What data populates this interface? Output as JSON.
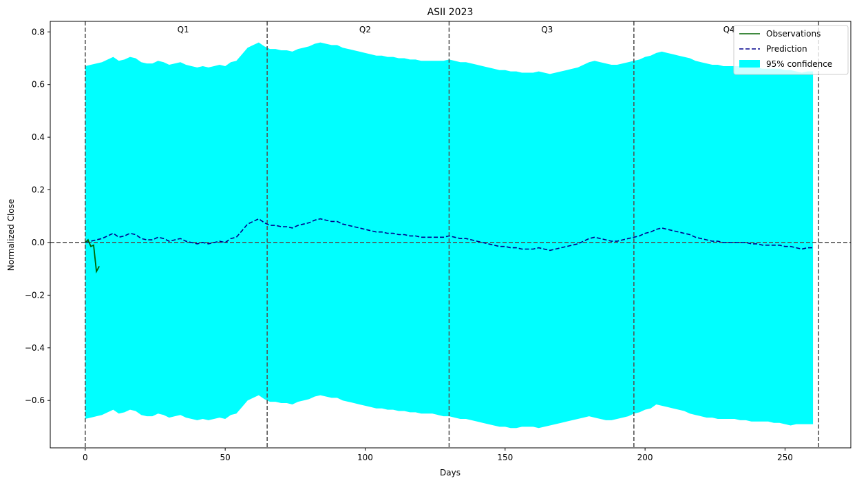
{
  "chart_data": {
    "type": "line",
    "title": "ASII 2023",
    "xlabel": "Days",
    "ylabel": "Normalized Close",
    "xlim": [
      -12.5,
      273.5
    ],
    "ylim": [
      -0.78,
      0.84
    ],
    "xticks": [
      0,
      50,
      100,
      150,
      200,
      250
    ],
    "yticks": [
      -0.6,
      -0.4,
      -0.2,
      0.0,
      0.2,
      0.4,
      0.6,
      0.8
    ],
    "grid": false,
    "legend_position": "top-right",
    "legend": {
      "observations": "Observations",
      "prediction": "Prediction",
      "confidence": "95% confidence"
    },
    "colors": {
      "observations": "#006400",
      "prediction": "#00008b",
      "confidence": "#00ffff",
      "reference_lines": "#555555"
    },
    "quarter_lines": [
      0,
      65,
      130,
      196,
      262
    ],
    "horizontal_line": 0.0,
    "quarter_labels": [
      {
        "label": "Q1",
        "x": 35
      },
      {
        "label": "Q2",
        "x": 100
      },
      {
        "label": "Q3",
        "x": 165
      },
      {
        "label": "Q4",
        "x": 230
      }
    ],
    "observations": {
      "x": [
        0,
        1,
        2,
        3,
        4,
        5
      ],
      "y": [
        0.0,
        0.01,
        -0.015,
        -0.01,
        -0.11,
        -0.09
      ]
    },
    "prediction": {
      "x": [
        0,
        2,
        4,
        6,
        8,
        10,
        12,
        14,
        16,
        18,
        20,
        22,
        24,
        26,
        28,
        30,
        32,
        34,
        36,
        38,
        40,
        42,
        44,
        46,
        48,
        50,
        52,
        54,
        56,
        58,
        60,
        62,
        64,
        66,
        68,
        70,
        72,
        74,
        76,
        78,
        80,
        82,
        84,
        86,
        88,
        90,
        92,
        94,
        96,
        98,
        100,
        102,
        104,
        106,
        108,
        110,
        112,
        114,
        116,
        118,
        120,
        122,
        124,
        126,
        128,
        130,
        132,
        134,
        136,
        138,
        140,
        142,
        144,
        146,
        148,
        150,
        152,
        154,
        156,
        158,
        160,
        162,
        164,
        166,
        168,
        170,
        172,
        174,
        176,
        178,
        180,
        182,
        184,
        186,
        188,
        190,
        192,
        194,
        196,
        198,
        200,
        202,
        204,
        206,
        208,
        210,
        212,
        214,
        216,
        218,
        220,
        222,
        224,
        226,
        228,
        230,
        232,
        234,
        236,
        238,
        240,
        242,
        244,
        246,
        248,
        250,
        252,
        254,
        256,
        258,
        260
      ],
      "y": [
        0.0,
        0.005,
        0.01,
        0.015,
        0.025,
        0.035,
        0.02,
        0.025,
        0.035,
        0.03,
        0.015,
        0.01,
        0.01,
        0.02,
        0.015,
        0.005,
        0.01,
        0.015,
        0.005,
        0.0,
        -0.005,
        0.0,
        -0.005,
        0.0,
        0.005,
        0.0,
        0.015,
        0.02,
        0.045,
        0.07,
        0.08,
        0.09,
        0.075,
        0.065,
        0.065,
        0.06,
        0.06,
        0.055,
        0.065,
        0.07,
        0.075,
        0.085,
        0.09,
        0.085,
        0.08,
        0.08,
        0.07,
        0.065,
        0.06,
        0.055,
        0.05,
        0.045,
        0.04,
        0.04,
        0.035,
        0.035,
        0.03,
        0.03,
        0.025,
        0.025,
        0.02,
        0.02,
        0.02,
        0.02,
        0.02,
        0.025,
        0.02,
        0.015,
        0.015,
        0.01,
        0.005,
        0.0,
        -0.005,
        -0.01,
        -0.015,
        -0.015,
        -0.02,
        -0.02,
        -0.025,
        -0.025,
        -0.025,
        -0.02,
        -0.025,
        -0.03,
        -0.025,
        -0.02,
        -0.015,
        -0.01,
        -0.005,
        0.005,
        0.015,
        0.02,
        0.015,
        0.01,
        0.005,
        0.005,
        0.01,
        0.015,
        0.02,
        0.025,
        0.035,
        0.04,
        0.05,
        0.055,
        0.05,
        0.045,
        0.04,
        0.035,
        0.03,
        0.02,
        0.015,
        0.01,
        0.005,
        0.005,
        0.0,
        0.0,
        0.0,
        0.0,
        0.0,
        -0.005,
        -0.005,
        -0.01,
        -0.01,
        -0.01,
        -0.01,
        -0.015,
        -0.015,
        -0.02,
        -0.025,
        -0.02,
        -0.02
      ]
    },
    "confidence_band": {
      "x": [
        0,
        2,
        4,
        6,
        8,
        10,
        12,
        14,
        16,
        18,
        20,
        22,
        24,
        26,
        28,
        30,
        32,
        34,
        36,
        38,
        40,
        42,
        44,
        46,
        48,
        50,
        52,
        54,
        56,
        58,
        60,
        62,
        64,
        66,
        68,
        70,
        72,
        74,
        76,
        78,
        80,
        82,
        84,
        86,
        88,
        90,
        92,
        94,
        96,
        98,
        100,
        102,
        104,
        106,
        108,
        110,
        112,
        114,
        116,
        118,
        120,
        122,
        124,
        126,
        128,
        130,
        132,
        134,
        136,
        138,
        140,
        142,
        144,
        146,
        148,
        150,
        152,
        154,
        156,
        158,
        160,
        162,
        164,
        166,
        168,
        170,
        172,
        174,
        176,
        178,
        180,
        182,
        184,
        186,
        188,
        190,
        192,
        194,
        196,
        198,
        200,
        202,
        204,
        206,
        208,
        210,
        212,
        214,
        216,
        218,
        220,
        222,
        224,
        226,
        228,
        230,
        232,
        234,
        236,
        238,
        240,
        242,
        244,
        246,
        248,
        250,
        252,
        254,
        256,
        258,
        260
      ],
      "lower": [
        -0.67,
        -0.665,
        -0.66,
        -0.655,
        -0.645,
        -0.635,
        -0.65,
        -0.645,
        -0.635,
        -0.64,
        -0.655,
        -0.66,
        -0.66,
        -0.65,
        -0.655,
        -0.665,
        -0.66,
        -0.655,
        -0.665,
        -0.67,
        -0.675,
        -0.67,
        -0.675,
        -0.67,
        -0.665,
        -0.67,
        -0.655,
        -0.65,
        -0.625,
        -0.6,
        -0.59,
        -0.58,
        -0.595,
        -0.605,
        -0.605,
        -0.61,
        -0.61,
        -0.615,
        -0.605,
        -0.6,
        -0.595,
        -0.585,
        -0.58,
        -0.585,
        -0.59,
        -0.59,
        -0.6,
        -0.605,
        -0.61,
        -0.615,
        -0.62,
        -0.625,
        -0.63,
        -0.63,
        -0.635,
        -0.635,
        -0.64,
        -0.64,
        -0.645,
        -0.645,
        -0.65,
        -0.65,
        -0.65,
        -0.655,
        -0.66,
        -0.66,
        -0.665,
        -0.67,
        -0.67,
        -0.675,
        -0.68,
        -0.685,
        -0.69,
        -0.695,
        -0.7,
        -0.7,
        -0.705,
        -0.705,
        -0.7,
        -0.7,
        -0.7,
        -0.705,
        -0.7,
        -0.695,
        -0.69,
        -0.685,
        -0.68,
        -0.675,
        -0.67,
        -0.665,
        -0.66,
        -0.665,
        -0.67,
        -0.675,
        -0.675,
        -0.67,
        -0.665,
        -0.66,
        -0.65,
        -0.645,
        -0.635,
        -0.63,
        -0.615,
        -0.62,
        -0.625,
        -0.63,
        -0.635,
        -0.64,
        -0.65,
        -0.655,
        -0.66,
        -0.665,
        -0.665,
        -0.67,
        -0.67,
        -0.67,
        -0.67,
        -0.675,
        -0.675,
        -0.68,
        -0.68,
        -0.68,
        -0.68,
        -0.685,
        -0.685,
        -0.69,
        -0.695,
        -0.69,
        -0.69,
        -0.69,
        -0.69
      ],
      "upper": [
        0.67,
        0.675,
        0.68,
        0.685,
        0.695,
        0.705,
        0.69,
        0.695,
        0.705,
        0.7,
        0.685,
        0.68,
        0.68,
        0.69,
        0.685,
        0.675,
        0.68,
        0.685,
        0.675,
        0.67,
        0.665,
        0.67,
        0.665,
        0.67,
        0.675,
        0.67,
        0.685,
        0.69,
        0.715,
        0.74,
        0.75,
        0.76,
        0.745,
        0.735,
        0.735,
        0.73,
        0.73,
        0.725,
        0.735,
        0.74,
        0.745,
        0.755,
        0.76,
        0.755,
        0.75,
        0.75,
        0.74,
        0.735,
        0.73,
        0.725,
        0.72,
        0.715,
        0.71,
        0.71,
        0.705,
        0.705,
        0.7,
        0.7,
        0.695,
        0.695,
        0.69,
        0.69,
        0.69,
        0.69,
        0.69,
        0.695,
        0.69,
        0.685,
        0.685,
        0.68,
        0.675,
        0.67,
        0.665,
        0.66,
        0.655,
        0.655,
        0.65,
        0.65,
        0.645,
        0.645,
        0.645,
        0.65,
        0.645,
        0.64,
        0.645,
        0.65,
        0.655,
        0.66,
        0.665,
        0.675,
        0.685,
        0.69,
        0.685,
        0.68,
        0.675,
        0.675,
        0.68,
        0.685,
        0.69,
        0.695,
        0.705,
        0.71,
        0.72,
        0.725,
        0.72,
        0.715,
        0.71,
        0.705,
        0.7,
        0.69,
        0.685,
        0.68,
        0.675,
        0.675,
        0.67,
        0.67,
        0.67,
        0.67,
        0.67,
        0.665,
        0.665,
        0.66,
        0.66,
        0.66,
        0.66,
        0.655,
        0.655,
        0.65,
        0.645,
        0.65,
        0.65
      ]
    }
  }
}
